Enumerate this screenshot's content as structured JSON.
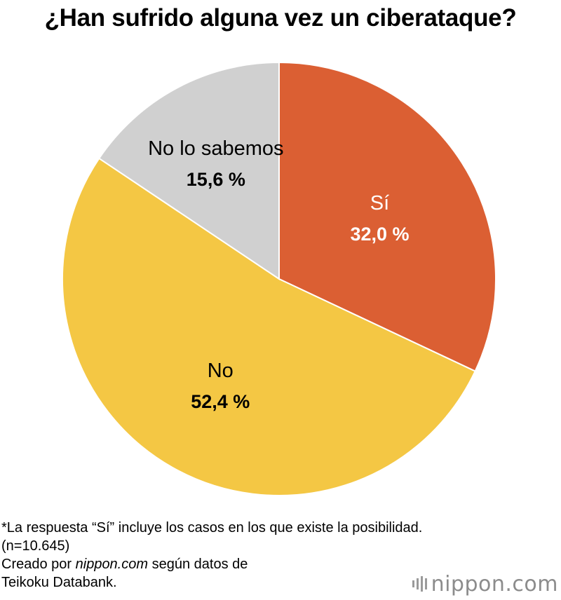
{
  "chart_data": {
    "type": "pie",
    "title": "¿Han sufrido alguna vez un ciberataque?",
    "slices": [
      {
        "label": "Sí",
        "value": 32.0,
        "value_label": "32,0 %",
        "color": "#db5f33",
        "text_color": "#ffffff"
      },
      {
        "label": "No",
        "value": 52.4,
        "value_label": "52,4 %",
        "color": "#f4c744",
        "text_color": "#000000"
      },
      {
        "label": "No lo sabemos",
        "value": 15.6,
        "value_label": "15,6 %",
        "color": "#d0d0d0",
        "text_color": "#000000"
      }
    ]
  },
  "notes": {
    "line1": "*La respuesta “Sí” incluye los casos en los que existe la posibilidad.",
    "line2": "(n=10.645)",
    "line3_pre": "Creado por ",
    "line3_site": "nippon.com",
    "line3_post": " según datos de",
    "line4": "Teikoku Databank."
  },
  "logo": {
    "text": "nippon.com"
  }
}
